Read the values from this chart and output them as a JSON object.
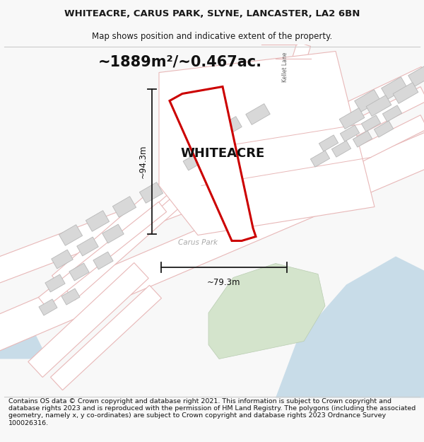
{
  "title_line1": "WHITEACRE, CARUS PARK, SLYNE, LANCASTER, LA2 6BN",
  "title_line2": "Map shows position and indicative extent of the property.",
  "area_label": "~1889m²/~0.467ac.",
  "property_label": "WHITEACRE",
  "dim_height": "~94.3m",
  "dim_width": "~79.3m",
  "park_label": "Carus Park",
  "footer_text": "Contains OS data © Crown copyright and database right 2021. This information is subject to Crown copyright and database rights 2023 and is reproduced with the permission of HM Land Registry. The polygons (including the associated geometry, namely x, y co-ordinates) are subject to Crown copyright and database rights 2023 Ordnance Survey 100026316.",
  "bg_color": "#f8f8f8",
  "map_bg": "#ffffff",
  "road_outline": "#e8b8b8",
  "road_fill": "#ffffff",
  "building_fill": "#d8d8d8",
  "building_stroke": "#b8b8b8",
  "property_stroke": "#cc0000",
  "water_color": "#c8dce8",
  "green_color": "#d4e4cc",
  "green_stroke": "#b8ccb0",
  "dim_line_color": "#1a1a1a",
  "text_color": "#1a1a1a",
  "title_fontsize": 9.5,
  "subtitle_fontsize": 8.5,
  "area_fontsize": 15,
  "property_label_fontsize": 13,
  "dim_fontsize": 8.5,
  "park_label_fontsize": 7.5,
  "footer_fontsize": 6.8,
  "kellet_lane_fontsize": 5.5
}
